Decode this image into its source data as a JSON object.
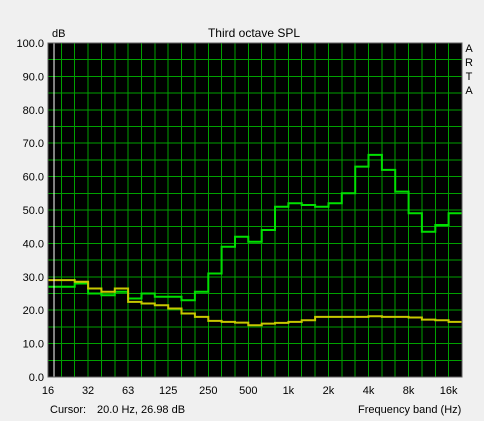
{
  "chart_data": {
    "type": "line",
    "title": "Third octave SPL",
    "ylabel": "dB",
    "xlabel": "Frequency band (Hz)",
    "brand": "ARTA",
    "cursor_label": "Cursor:",
    "cursor_value": "20.0 Hz, 26.98 dB",
    "ylim": [
      0,
      100
    ],
    "y_ticks": [
      "0.0",
      "10.0",
      "20.0",
      "30.0",
      "40.0",
      "50.0",
      "60.0",
      "70.0",
      "80.0",
      "90.0",
      "100.0"
    ],
    "x_tick_labels": [
      "16",
      "32",
      "63",
      "125",
      "250",
      "500",
      "1k",
      "2k",
      "4k",
      "8k",
      "16k"
    ],
    "x_scale": "log (third-octave bands)",
    "grid": true,
    "bands_hz": [
      "16",
      "20",
      "25",
      "31.5",
      "40",
      "50",
      "63",
      "80",
      "100",
      "125",
      "160",
      "200",
      "250",
      "315",
      "400",
      "500",
      "630",
      "800",
      "1k",
      "1.25k",
      "1.6k",
      "2k",
      "2.5k",
      "3.15k",
      "4k",
      "5k",
      "6.3k",
      "8k",
      "10k",
      "12.5k",
      "16k",
      "20k"
    ],
    "series": [
      {
        "color": "#00e000",
        "values": [
          27,
          27,
          28,
          25,
          24.5,
          25.5,
          23.5,
          25,
          24,
          24,
          23,
          25.5,
          31,
          39,
          42,
          40.5,
          44,
          51,
          52,
          51.5,
          51,
          52,
          55,
          63,
          66.5,
          62,
          55.5,
          49,
          43.5,
          45.5,
          49,
          49
        ]
      },
      {
        "color": "#c8c800",
        "values": [
          29,
          29,
          28.5,
          26.5,
          25.5,
          26.5,
          22.5,
          22,
          21.5,
          20.5,
          19,
          18,
          16.8,
          16.5,
          16.3,
          15.5,
          16,
          16.2,
          16.5,
          17,
          18,
          18,
          18,
          18,
          18.2,
          18,
          18,
          17.8,
          17.2,
          17,
          16.5,
          16.5
        ]
      }
    ],
    "cursor_color": "#ffffff",
    "plot_background": "#000000",
    "grid_color": "#00a000"
  }
}
